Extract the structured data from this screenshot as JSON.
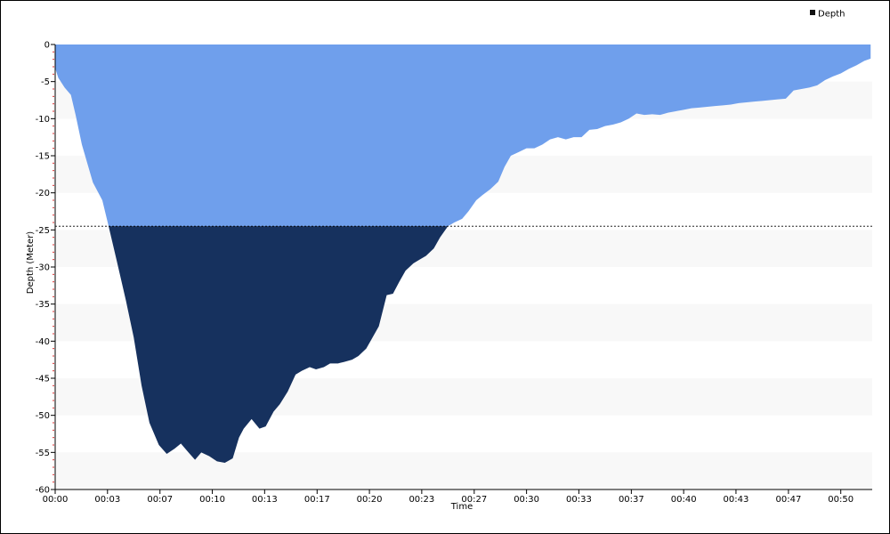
{
  "chart_data": {
    "type": "area",
    "title": "",
    "xlabel": "Time",
    "ylabel": "Depth (Meter)",
    "legend": {
      "position": "top-right",
      "entries": [
        "Depth"
      ]
    },
    "colors": {
      "shallow": "#6f9fec",
      "deep": "#16315e",
      "band": "#f8f8f8",
      "threshold_line": "#000000"
    },
    "threshold": -24.5,
    "xlim": [
      0,
      52
    ],
    "ylim": [
      -60,
      0
    ],
    "y_ticks": [
      0,
      -5,
      -10,
      -15,
      -20,
      -25,
      -30,
      -35,
      -40,
      -45,
      -50,
      -55,
      -60
    ],
    "y_tick_labels": [
      "0",
      "-5",
      "-10",
      "-15",
      "-20",
      "-25",
      "-30",
      "-35",
      "-40",
      "-45",
      "-50",
      "-55",
      "-60"
    ],
    "x_ticks": [
      0,
      3.33,
      6.67,
      10,
      13.33,
      16.67,
      20,
      23.33,
      26.67,
      30,
      33.33,
      36.67,
      40,
      43.33,
      46.67,
      50
    ],
    "x_tick_labels": [
      "00:00",
      "00:03",
      "00:07",
      "00:10",
      "00:13",
      "00:17",
      "00:20",
      "00:23",
      "00:27",
      "00:30",
      "00:33",
      "00:37",
      "00:40",
      "00:43",
      "00:47",
      "00:50"
    ],
    "series": [
      {
        "name": "Depth",
        "x": [
          0,
          0.2,
          0.6,
          1.0,
          1.3,
          1.7,
          2.4,
          3.0,
          3.4,
          3.9,
          4.5,
          5.0,
          5.5,
          6.0,
          6.6,
          7.1,
          7.6,
          8.0,
          8.4,
          8.9,
          9.3,
          9.8,
          10.3,
          10.8,
          11.3,
          11.7,
          12.0,
          12.5,
          13.0,
          13.4,
          13.9,
          14.3,
          14.8,
          15.3,
          15.7,
          16.2,
          16.6,
          17.1,
          17.5,
          18.0,
          18.4,
          18.9,
          19.3,
          19.8,
          20.2,
          20.6,
          21.1,
          21.5,
          21.9,
          22.3,
          22.8,
          23.2,
          23.6,
          24.1,
          24.5,
          25.0,
          25.4,
          25.9,
          26.3,
          26.8,
          27.2,
          27.7,
          28.2,
          28.6,
          29.0,
          29.5,
          30.0,
          30.5,
          31.0,
          31.5,
          32.0,
          32.5,
          33.0,
          33.5,
          34.0,
          34.5,
          35.0,
          35.5,
          36.0,
          36.5,
          37.0,
          37.5,
          38.0,
          38.5,
          39.0,
          39.5,
          40.0,
          40.5,
          41.0,
          41.5,
          42.0,
          42.5,
          43.0,
          43.5,
          44.0,
          44.5,
          45.0,
          45.5,
          46.0,
          46.5,
          47.0,
          47.5,
          48.0,
          48.5,
          49.0,
          49.5,
          50.0,
          50.5,
          51.0,
          51.5,
          51.9
        ],
        "values": [
          -3.2,
          -4.5,
          -5.8,
          -6.8,
          -9.5,
          -13.5,
          -18.6,
          -21.0,
          -24.5,
          -29.0,
          -34.5,
          -39.5,
          -46.0,
          -51.0,
          -54.0,
          -55.2,
          -54.5,
          -53.8,
          -54.8,
          -56.0,
          -55.0,
          -55.5,
          -56.2,
          -56.4,
          -55.8,
          -53.0,
          -51.8,
          -50.5,
          -51.8,
          -51.5,
          -49.5,
          -48.5,
          -46.8,
          -44.5,
          -44.0,
          -43.5,
          -43.8,
          -43.5,
          -43.0,
          -43.0,
          -42.8,
          -42.5,
          -42.0,
          -41.0,
          -39.5,
          -38.0,
          -33.8,
          -33.6,
          -32.0,
          -30.5,
          -29.5,
          -29.0,
          -28.5,
          -27.5,
          -26.0,
          -24.5,
          -24.0,
          -23.5,
          -22.5,
          -21.0,
          -20.3,
          -19.5,
          -18.5,
          -16.5,
          -15.0,
          -14.5,
          -14.0,
          -14.0,
          -13.5,
          -12.8,
          -12.5,
          -12.8,
          -12.5,
          -12.5,
          -11.5,
          -11.4,
          -11.0,
          -10.8,
          -10.5,
          -10.0,
          -9.3,
          -9.5,
          -9.4,
          -9.5,
          -9.2,
          -9.0,
          -8.8,
          -8.6,
          -8.5,
          -8.4,
          -8.3,
          -8.2,
          -8.1,
          -7.9,
          -7.8,
          -7.7,
          -7.6,
          -7.5,
          -7.4,
          -7.3,
          -6.2,
          -6.0,
          -5.8,
          -5.5,
          -4.8,
          -4.3,
          -3.9,
          -3.3,
          -2.8,
          -2.2,
          -1.9
        ]
      }
    ]
  }
}
